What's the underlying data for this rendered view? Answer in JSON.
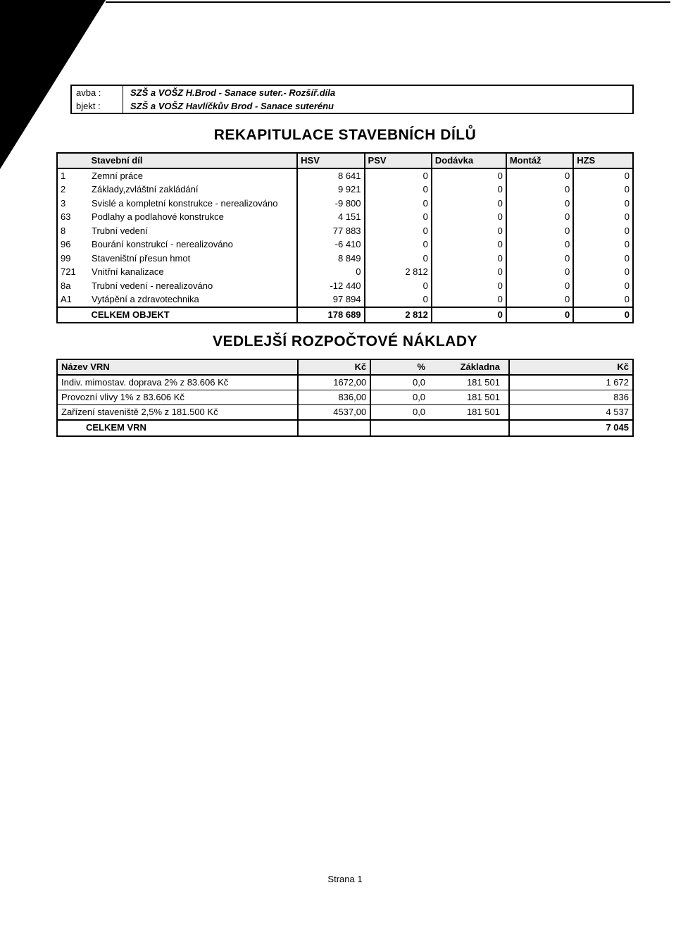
{
  "header": {
    "row1_label": "avba :",
    "row1_value": "SZŠ a VOŠZ H.Brod - Sanace suter.- Rozšíř.díla",
    "row2_label": "bjekt :",
    "row2_value": "SZŠ a VOŠZ Havlíčkův Brod - Sanace suterénu"
  },
  "section1": {
    "title": "REKAPITULACE  STAVEBNÍCH  DÍLŮ",
    "columns": {
      "code": "",
      "name": "Stavební díl",
      "hsv": "HSV",
      "psv": "PSV",
      "dod": "Dodávka",
      "mon": "Montáž",
      "hzs": "HZS"
    },
    "rows": [
      {
        "code": "1",
        "name": "Zemní práce",
        "hsv": "8 641",
        "psv": "0",
        "dod": "0",
        "mon": "0",
        "hzs": "0"
      },
      {
        "code": "2",
        "name": "Základy,zvláštní zakládání",
        "hsv": "9 921",
        "psv": "0",
        "dod": "0",
        "mon": "0",
        "hzs": "0"
      },
      {
        "code": "3",
        "name": "Svislé a kompletní konstrukce - nerealizováno",
        "hsv": "-9 800",
        "psv": "0",
        "dod": "0",
        "mon": "0",
        "hzs": "0"
      },
      {
        "code": "63",
        "name": "Podlahy a podlahové konstrukce",
        "hsv": "4 151",
        "psv": "0",
        "dod": "0",
        "mon": "0",
        "hzs": "0"
      },
      {
        "code": "8",
        "name": "Trubní vedení",
        "hsv": "77 883",
        "psv": "0",
        "dod": "0",
        "mon": "0",
        "hzs": "0"
      },
      {
        "code": "96",
        "name": "Bourání konstrukcí - nerealizováno",
        "hsv": "-6 410",
        "psv": "0",
        "dod": "0",
        "mon": "0",
        "hzs": "0"
      },
      {
        "code": "99",
        "name": "Staveništní přesun hmot",
        "hsv": "8 849",
        "psv": "0",
        "dod": "0",
        "mon": "0",
        "hzs": "0"
      },
      {
        "code": "721",
        "name": "Vnitřní kanalizace",
        "hsv": "0",
        "psv": "2 812",
        "dod": "0",
        "mon": "0",
        "hzs": "0"
      },
      {
        "code": "8a",
        "name": "Trubní vedení - nerealizováno",
        "hsv": "-12 440",
        "psv": "0",
        "dod": "0",
        "mon": "0",
        "hzs": "0"
      },
      {
        "code": "A1",
        "name": "Vytápění a zdravotechnika",
        "hsv": "97 894",
        "psv": "0",
        "dod": "0",
        "mon": "0",
        "hzs": "0"
      }
    ],
    "total": {
      "label": "CELKEM  OBJEKT",
      "hsv": "178 689",
      "psv": "2 812",
      "dod": "0",
      "mon": "0",
      "hzs": "0"
    }
  },
  "section2": {
    "title": "VEDLEJŠÍ ROZPOČTOVÉ  NÁKLADY",
    "columns": {
      "name": "Název VRN",
      "kc1": "Kč",
      "pct": "%",
      "zak": "Základna",
      "kc2": "Kč"
    },
    "rows": [
      {
        "name": "Indiv. mimostav. doprava 2% z 83.606 Kč",
        "kc1": "1672,00",
        "pct": "0,0",
        "zak": "181 501",
        "kc2": "1 672"
      },
      {
        "name": "Provozní vlivy 1% z  83.606 Kč",
        "kc1": "836,00",
        "pct": "0,0",
        "zak": "181 501",
        "kc2": "836"
      },
      {
        "name": "Zařízení staveniště 2,5% z 181.500 Kč",
        "kc1": "4537,00",
        "pct": "0,0",
        "zak": "181 501",
        "kc2": "4 537"
      }
    ],
    "total": {
      "label": "CELKEM VRN",
      "kc2": "7 045"
    }
  },
  "footer": {
    "page": "Strana 1"
  },
  "style": {
    "background": "#ffffff",
    "text_color": "#000000",
    "header_bg": "#ececec",
    "border_color": "#000000",
    "body_fontsize": 13,
    "title_fontsize": 21
  }
}
